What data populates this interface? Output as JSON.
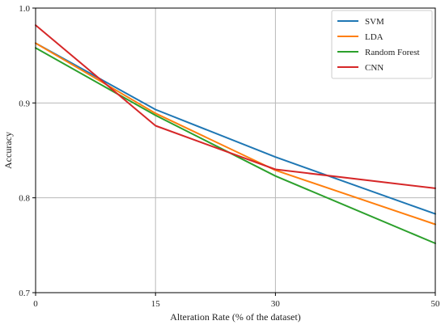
{
  "chart_data": {
    "type": "line",
    "title": "",
    "xlabel": "Alteration Rate (% of the dataset)",
    "ylabel": "Accuracy",
    "x": [
      0,
      15,
      30,
      50
    ],
    "xticks": [
      "0",
      "15",
      "30",
      "50"
    ],
    "yticks": [
      "0.7",
      "0.8",
      "0.9",
      "1.0"
    ],
    "xlim": [
      0,
      50
    ],
    "ylim": [
      0.7,
      1.0
    ],
    "grid": true,
    "legend_position": "top-right",
    "series": [
      {
        "name": "SVM",
        "color": "#1f77b4",
        "values": [
          0.963,
          0.893,
          0.843,
          0.783
        ]
      },
      {
        "name": "LDA",
        "color": "#ff7f0e",
        "values": [
          0.963,
          0.889,
          0.829,
          0.772
        ]
      },
      {
        "name": "Random Forest",
        "color": "#2ca02c",
        "values": [
          0.958,
          0.887,
          0.823,
          0.752
        ]
      },
      {
        "name": "CNN",
        "color": "#d62728",
        "values": [
          0.982,
          0.876,
          0.83,
          0.81
        ]
      }
    ]
  }
}
